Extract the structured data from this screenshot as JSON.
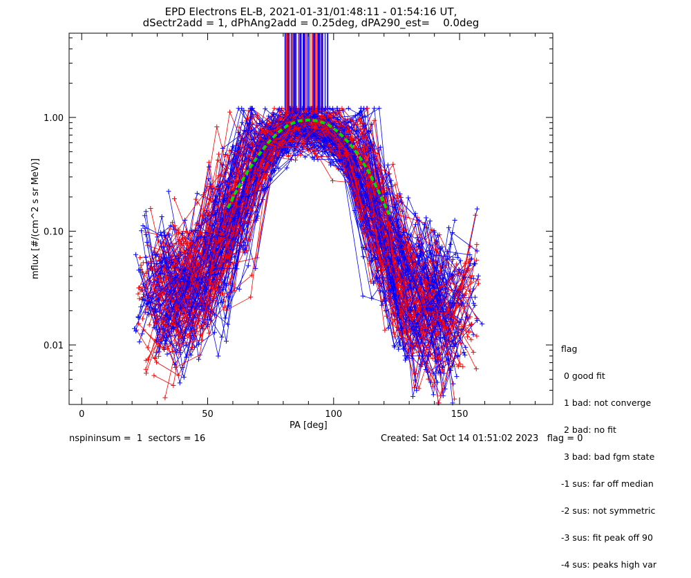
{
  "chart_data": {
    "type": "scatter",
    "title": "EPD Electrons EL-B, 2021-01-31/01:48:11 - 01:54:16 UT,",
    "subtitle": "dSectr2add = 1, dPhAng2add = 0.25deg, dPA290_est=    0.0deg",
    "xlabel": "PA [deg]",
    "ylabel": "mflux [#/(cm^2 s sr MeV)]",
    "xlim": [
      -5,
      187
    ],
    "ylim": [
      0.003,
      5.5
    ],
    "yscale": "log",
    "x_ticks": [
      0,
      50,
      100,
      150
    ],
    "y_ticks": [
      {
        "value": 0.01,
        "label": "0.01"
      },
      {
        "value": 0.1,
        "label": "0.10"
      },
      {
        "value": 1.0,
        "label": "1.00"
      }
    ],
    "series_colors": {
      "red": "#ff0000",
      "blue": "#0000ff",
      "fit": "#00dd00"
    },
    "fit_curve": {
      "color": "#00dd00",
      "x": [
        58,
        62,
        66,
        70,
        74,
        78,
        82,
        86,
        90,
        94,
        98,
        102,
        106,
        110,
        114,
        118,
        122
      ],
      "y": [
        0.16,
        0.24,
        0.34,
        0.46,
        0.6,
        0.74,
        0.86,
        0.93,
        0.95,
        0.93,
        0.86,
        0.74,
        0.6,
        0.46,
        0.33,
        0.22,
        0.14
      ]
    },
    "spiky_band_x": [
      80,
      98
    ],
    "envelope": {
      "pa": [
        23,
        35,
        45,
        55,
        62,
        70,
        78,
        85,
        90,
        95,
        100,
        108,
        115,
        122,
        130,
        140,
        150,
        157
      ],
      "median": [
        0.025,
        0.028,
        0.035,
        0.08,
        0.2,
        0.42,
        0.72,
        0.83,
        0.84,
        0.83,
        0.72,
        0.45,
        0.22,
        0.08,
        0.025,
        0.02,
        0.022,
        0.03
      ]
    }
  },
  "legend": {
    "header": "flag",
    "items": [
      " 0 good fit",
      " 1 bad: not converge",
      " 2 bad: no fit",
      " 3 bad: bad fgm state",
      "-1 sus: far off median",
      "-2 sus: not symmetric",
      "-3 sus: fit peak off 90",
      "-4 sus: peaks high var"
    ]
  },
  "footer": {
    "left": "nspininsum =  1  sectors = 16",
    "right": "Created: Sat Oct 14 01:51:02 2023   flag = 0"
  }
}
